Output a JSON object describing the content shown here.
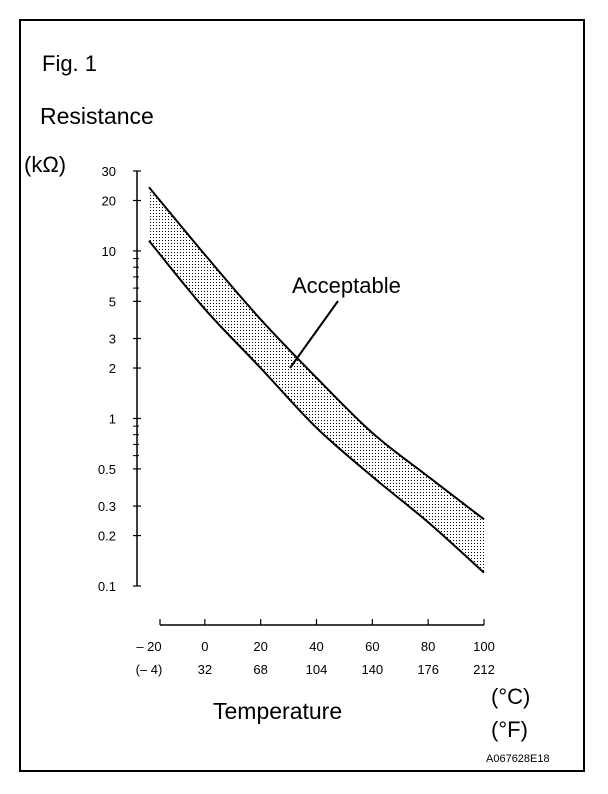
{
  "figure_label": "Fig. 1",
  "chart_data": {
    "type": "area",
    "title": "",
    "ylabel": "Resistance",
    "yunit": "(kΩ)",
    "xlabel": "Temperature",
    "xunit_c": "(°C)",
    "xunit_f": "(°F)",
    "y_scale": "log",
    "ylim": [
      0.1,
      30
    ],
    "xlim": [
      -20,
      100
    ],
    "y_tick_labels": [
      "30",
      "20",
      "10",
      "5",
      "3",
      "2",
      "1",
      "0.5",
      "0.3",
      "0.2",
      "0.1"
    ],
    "y_tick_values": [
      30,
      20,
      10,
      5,
      3,
      2,
      1,
      0.5,
      0.3,
      0.2,
      0.1
    ],
    "x_ticks_c": [
      -20,
      0,
      20,
      40,
      60,
      80,
      100
    ],
    "x_tick_labels_c": [
      "– 20",
      "0",
      "20",
      "40",
      "60",
      "80",
      "100"
    ],
    "x_tick_labels_f": [
      "(– 4)",
      "32",
      "68",
      "104",
      "140",
      "176",
      "212"
    ],
    "grid": false,
    "annotation": "Acceptable",
    "series": [
      {
        "x": [
          -20,
          0,
          20,
          40,
          60,
          80,
          100
        ],
        "values": [
          24,
          9.5,
          3.9,
          1.75,
          0.82,
          0.45,
          0.25
        ]
      },
      {
        "x": [
          -20,
          0,
          20,
          40,
          60,
          80,
          100
        ],
        "values": [
          11.5,
          4.5,
          2.0,
          0.88,
          0.45,
          0.24,
          0.12
        ]
      }
    ]
  },
  "doc_code": "A067628E18"
}
